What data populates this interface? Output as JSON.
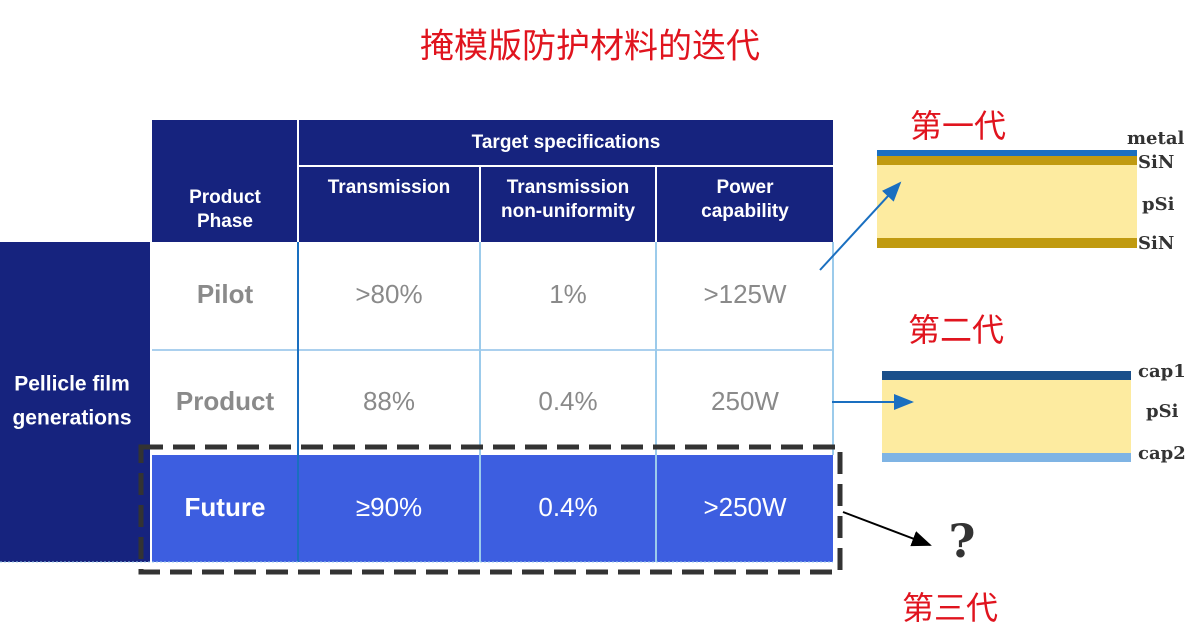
{
  "title": "掩模版防护材料的迭代",
  "side_label": [
    "Pellicle film",
    "generations"
  ],
  "table": {
    "group_header": "Target specifications",
    "phase_header": [
      "Product",
      "Phase"
    ],
    "columns": [
      [
        "Transmission"
      ],
      [
        "Transmission",
        "non-uniformity"
      ],
      [
        "Power",
        "capability"
      ]
    ],
    "rows": [
      [
        "Pilot",
        ">80%",
        "1%",
        ">125W"
      ],
      [
        "Product",
        "88%",
        "0.4%",
        "250W"
      ],
      [
        "Future",
        "≥90%",
        "0.4%",
        ">250W"
      ]
    ]
  },
  "generations": [
    {
      "label": "第一代",
      "layers": [
        "metal",
        "SiN",
        "pSi",
        "SiN"
      ]
    },
    {
      "label": "第二代",
      "layers": [
        "cap1",
        "pSi",
        "cap2"
      ]
    },
    {
      "label": "第三代",
      "unknown": "?"
    }
  ]
}
